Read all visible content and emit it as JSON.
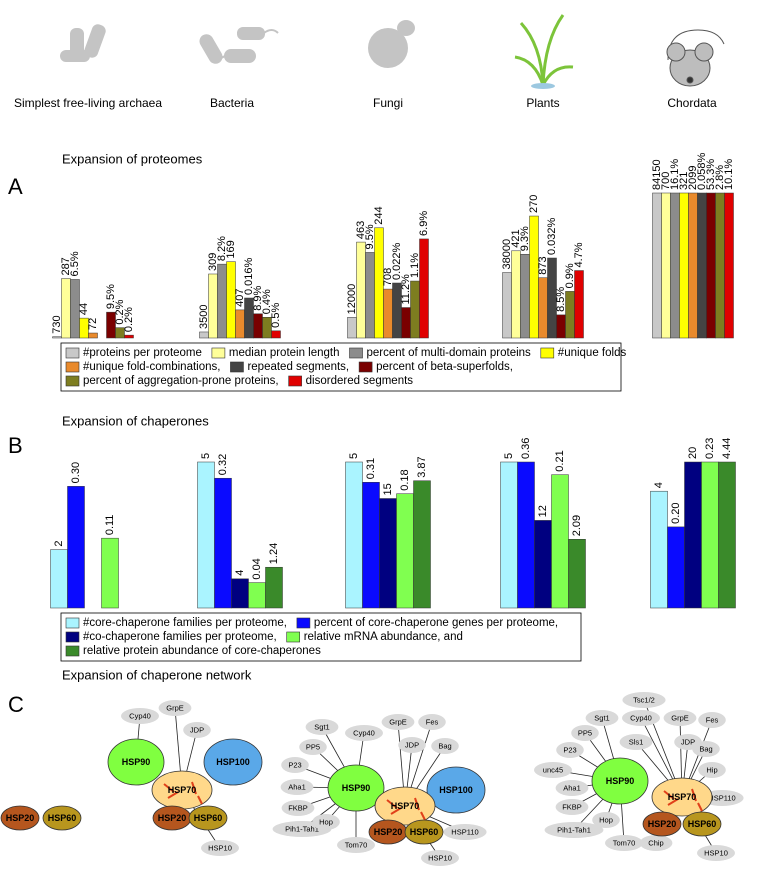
{
  "chart_data": [
    {
      "type": "bar",
      "section_title": "Expansion of proteomes",
      "panel_label": "A",
      "categories": [
        "Simplest free-living archaea",
        "Bacteria",
        "Fungi",
        "Plants",
        "Chordata"
      ],
      "series": [
        {
          "name": "#proteins per proteome",
          "color": "#c8c8c8",
          "values": [
            730,
            3500,
            12000,
            38000,
            84150
          ]
        },
        {
          "name": "median protein length",
          "color": "#ffff99",
          "values": [
            287,
            309,
            463,
            421,
            700
          ]
        },
        {
          "name": "percent of multi-domain proteins",
          "color": "#8c8c8c",
          "values": [
            6.5,
            8.2,
            9.5,
            9.3,
            16.1
          ],
          "value_labels": [
            "6.5%",
            "8.2%",
            "9.5%",
            "9.3%",
            "16.1%"
          ]
        },
        {
          "name": "#unique folds",
          "color": "#ffff00",
          "values": [
            44,
            169,
            244,
            270,
            321
          ]
        },
        {
          "name": "#unique fold-combinations,",
          "color": "#e98a2c",
          "values": [
            72,
            407,
            708,
            873,
            2099
          ]
        },
        {
          "name": "repeated segments,",
          "color": "#444444",
          "values": [
            null,
            0.016,
            0.022,
            0.032,
            0.058
          ],
          "value_labels": [
            null,
            "0.016%",
            "0.022%",
            "0.032%",
            "0.058%"
          ]
        },
        {
          "name": "percent of beta-superfolds,",
          "color": "#7a0000",
          "values": [
            9.5,
            8.9,
            11.2,
            8.5,
            53.3
          ],
          "value_labels": [
            "9.5%",
            "8.9%",
            "11.2%",
            "8.5%",
            "53.3%"
          ]
        },
        {
          "name": "percent of aggregation-prone proteins,",
          "color": "#7d7d20",
          "values": [
            0.2,
            0.4,
            1.1,
            0.9,
            2.8
          ],
          "value_labels": [
            "0.2%",
            "0.4%",
            "1.1%",
            "0.9%",
            "2.8%"
          ]
        },
        {
          "name": "disordered segments",
          "color": "#e00000",
          "values": [
            0.2,
            0.5,
            6.9,
            4.7,
            10.1
          ],
          "value_labels": [
            "0.2%",
            "0.5%",
            "6.9%",
            "4.7%",
            "10.1%"
          ]
        }
      ]
    },
    {
      "type": "bar",
      "section_title": "Expansion of chaperones",
      "panel_label": "B",
      "series": [
        {
          "name": "#core-chaperone families per proteome,",
          "color": "#aaf4ff",
          "values": [
            2,
            5,
            5,
            5,
            4
          ]
        },
        {
          "name": "percent of core-chaperone genes per proteome,",
          "color": "#0a0aff",
          "values": [
            0.3,
            0.32,
            0.31,
            0.36,
            0.2
          ],
          "value_labels": [
            "0.30",
            "0.32",
            "0.31",
            "0.36",
            "0.20"
          ]
        },
        {
          "name": "#co-chaperone families per proteome,",
          "color": "#000080",
          "values": [
            null,
            4,
            15,
            12,
            20
          ]
        },
        {
          "name": "relative  mRNA abundance, and",
          "color": "#80ff50",
          "values": [
            0.11,
            0.04,
            0.18,
            0.21,
            0.23
          ]
        },
        {
          "name": "relative protein abundance of core-chaperones",
          "color": "#3a8a2a",
          "values": [
            null,
            1.24,
            3.87,
            2.09,
            4.44
          ]
        }
      ]
    }
  ],
  "network": {
    "section_title": "Expansion of chaperone network",
    "panel_label": "C",
    "diagrams": [
      {
        "nodes": [
          "HSP20",
          "HSP60"
        ]
      },
      {
        "nodes": [
          "HSP90",
          "HSP70",
          "HSP100",
          "HSP20",
          "HSP60",
          "Cyp40",
          "GrpE",
          "JDP",
          "HSP10"
        ]
      },
      {
        "nodes": [
          "HSP90",
          "HSP70",
          "HSP100",
          "HSP20",
          "HSP60",
          "Sgt1",
          "Cyp40",
          "GrpE",
          "Fes",
          "PP5",
          "JDP",
          "Bag",
          "P23",
          "Aha1",
          "FKBP",
          "Pih1-Tah1",
          "Hop",
          "Tom70",
          "HSP110",
          "HSP10"
        ]
      },
      {
        "nodes": [
          "HSP90",
          "HSP70",
          "HSP20",
          "HSP60",
          "Tsc1/2",
          "Sgt1",
          "Cyp40",
          "GrpE",
          "Fes",
          "PP5",
          "Sls1",
          "JDP",
          "P23",
          "Bag",
          "Hip",
          "unc45",
          "Aha1",
          "HSP110",
          "FKBP",
          "Hop",
          "Pih1-Tah1",
          "Tom70",
          "Chip",
          "HSP10"
        ]
      }
    ]
  }
}
